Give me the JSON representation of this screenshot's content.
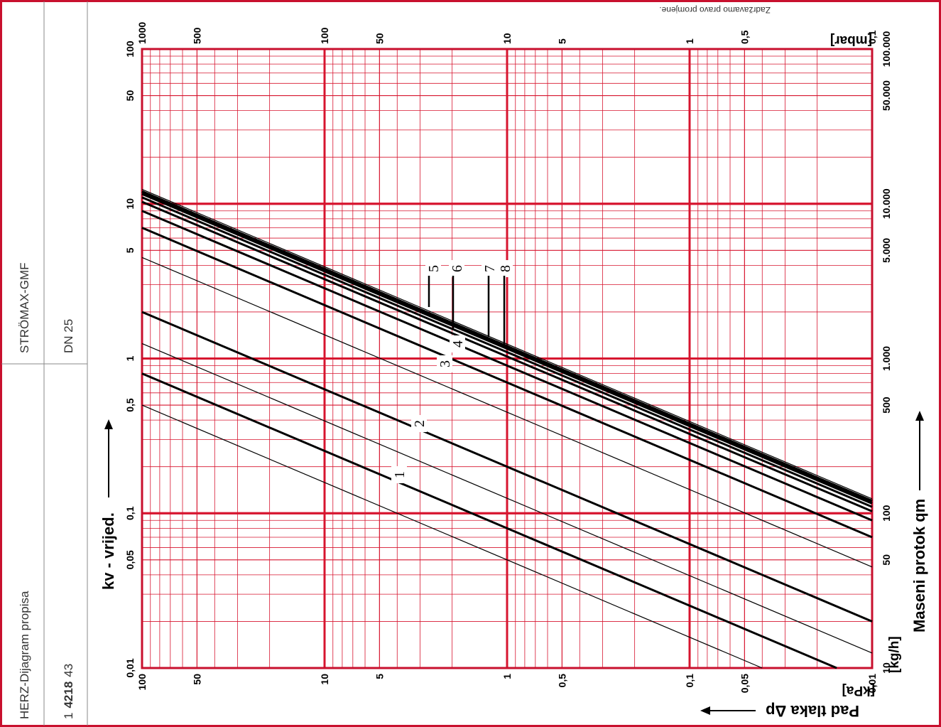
{
  "sidebar": {
    "title": "HERZ-Dijagram propisa",
    "code_prefix": "1",
    "code_bold": "4218",
    "code_suffix": "43",
    "product": "STRÖMAX-GMF",
    "size": "DN 25"
  },
  "copyright_note": "Zadržavamo pravo promjene.",
  "chart_data": {
    "type": "line",
    "title": "",
    "scale": "log-log",
    "grid": true,
    "orientation": "rotated 90 degrees clockwise",
    "x_axis": {
      "label": "Pad tlaka Δp",
      "unit": "[kPa]",
      "range": [
        0.01,
        100
      ],
      "ticks": [
        "100",
        "50",
        "10",
        "5",
        "1",
        "0,5",
        "0,1",
        "0,05",
        "0,01"
      ],
      "unit_alt": "[mbar]",
      "ticks_alt": [
        "1000",
        "500",
        "100",
        "50",
        "10",
        "5",
        "1",
        "0,5",
        "0,1"
      ]
    },
    "y_axis": {
      "label": "kv - vrijed.",
      "range": [
        0.01,
        100
      ],
      "ticks": [
        "100",
        "50",
        "10",
        "5",
        "1",
        "0,5",
        "0,1",
        "0,05",
        "0,01"
      ],
      "label_alt": "Maseni protok qm",
      "unit_alt": "[kg/h]",
      "ticks_alt": [
        "100.000",
        "50.000",
        "10.000",
        "5.000",
        "1.000",
        "500",
        "100",
        "50",
        "10"
      ]
    },
    "series": [
      {
        "name": "1",
        "kv": 0.8
      },
      {
        "name": "2",
        "kv": 2.0
      },
      {
        "name": "3",
        "kv": 7.0
      },
      {
        "name": "4",
        "kv": 9.0
      },
      {
        "name": "5",
        "kv": 12.0
      },
      {
        "name": "6",
        "kv": 11.0
      },
      {
        "name": "7",
        "kv": 10.3
      },
      {
        "name": "8",
        "kv": 11.6
      },
      {
        "name": "",
        "kv": 0.5
      },
      {
        "name": "",
        "kv": 1.25
      },
      {
        "name": "",
        "kv": 4.5
      },
      {
        "name": "",
        "kv": 12.4
      }
    ],
    "colors": {
      "grid": "#d7152f",
      "frame": "#c8102e",
      "line": "#000000"
    }
  }
}
